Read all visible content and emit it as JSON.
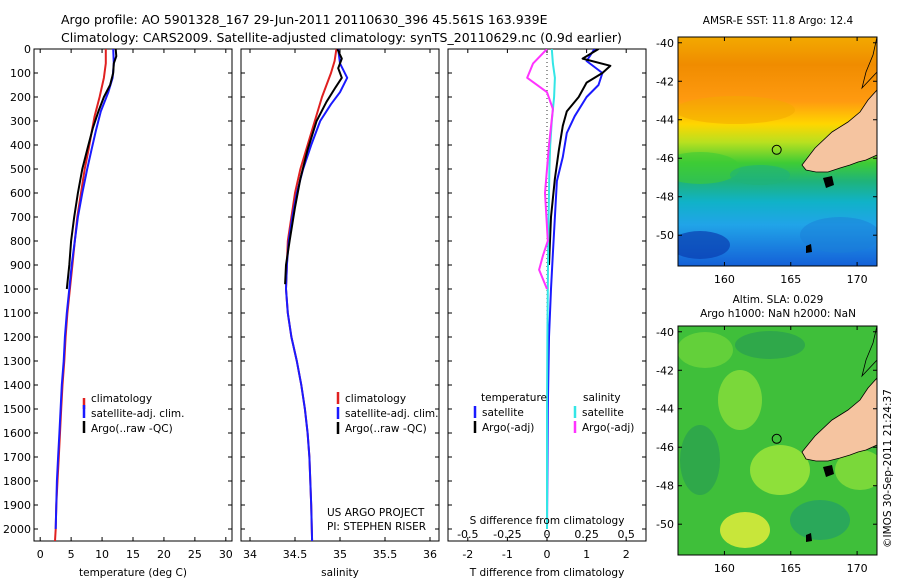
{
  "title": {
    "line1": "Argo profile: AO 5901328_167 29-Jun-2011 20110630_396 45.561S 163.939E",
    "line2": "Climatology: CARS2009. Satellite-adjusted climatology: synTS_20110629.nc (0.9d earlier)"
  },
  "footer_timestamp": "©IMOS 30-Sep-2011 21:24:37",
  "colors": {
    "climatology": "#e02020",
    "satellite": "#1a1aff",
    "argo": "#000000",
    "satellite_s": "#33e6e6",
    "argo_s": "#ff33ff"
  },
  "chart_data": [
    {
      "type": "line",
      "panel": "temperature",
      "xlabel": "temperature (deg C)",
      "ylabel": "",
      "xlim": [
        -1,
        31
      ],
      "ylim": [
        2050,
        0
      ],
      "xticks": [
        0,
        5,
        10,
        15,
        20,
        25,
        30
      ],
      "yticks": [
        0,
        100,
        200,
        300,
        400,
        500,
        600,
        700,
        800,
        900,
        1000,
        1100,
        1200,
        1300,
        1400,
        1500,
        1600,
        1700,
        1800,
        1900,
        2000
      ],
      "legend": [
        "climatology",
        "satellite-adj. clim.",
        "Argo(..raw -QC)"
      ],
      "series": [
        {
          "name": "climatology",
          "color_key": "climatology",
          "x": [
            10.6,
            10.6,
            10.3,
            9.6,
            8.8,
            8.3,
            7.8,
            7.2,
            6.6,
            6.0,
            5.6,
            5.2,
            4.8,
            4.4,
            4.1,
            3.9,
            3.6,
            3.4,
            3.2,
            3.0,
            2.8,
            2.6,
            2.5,
            2.4
          ],
          "y": [
            0,
            60,
            120,
            200,
            280,
            350,
            420,
            500,
            600,
            700,
            800,
            900,
            1000,
            1100,
            1200,
            1300,
            1400,
            1500,
            1600,
            1700,
            1800,
            1900,
            2000,
            2050
          ]
        },
        {
          "name": "satellite-adj. clim.",
          "color_key": "satellite",
          "x": [
            11.8,
            11.9,
            11.7,
            11.0,
            9.8,
            9.0,
            8.3,
            7.6,
            6.8,
            6.1,
            5.6,
            5.1,
            4.7,
            4.3,
            4.0,
            3.8,
            3.5,
            3.3,
            3.1,
            2.9,
            2.7,
            2.6,
            2.5
          ],
          "y": [
            0,
            60,
            120,
            180,
            260,
            340,
            420,
            500,
            600,
            700,
            800,
            900,
            1000,
            1100,
            1200,
            1300,
            1400,
            1500,
            1600,
            1700,
            1800,
            1900,
            2000
          ]
        },
        {
          "name": "Argo(..raw -QC)",
          "color_key": "argo",
          "x": [
            12.2,
            12.3,
            11.9,
            11.8,
            11.3,
            10.3,
            9.4,
            8.5,
            7.7,
            6.8,
            6.1,
            5.5,
            5.0,
            4.7,
            4.3
          ],
          "y": [
            0,
            30,
            60,
            100,
            150,
            200,
            260,
            330,
            410,
            500,
            600,
            700,
            800,
            900,
            1000
          ]
        }
      ]
    },
    {
      "type": "line",
      "panel": "salinity",
      "xlabel": "salinity",
      "ylabel": "",
      "xlim": [
        33.9,
        36.1
      ],
      "ylim": [
        2050,
        0
      ],
      "xticks": [
        34,
        34.5,
        35,
        35.5,
        36
      ],
      "legend": [
        "climatology",
        "satellite-adj. clim.",
        "Argo(..raw -QC)"
      ],
      "annotation": [
        "US ARGO PROJECT",
        "PI: STEPHEN RISER"
      ],
      "series": [
        {
          "name": "climatology",
          "color_key": "climatology",
          "x": [
            34.96,
            34.94,
            34.9,
            34.85,
            34.8,
            34.72,
            34.64,
            34.56,
            34.5,
            34.46,
            34.42,
            34.41,
            34.4,
            34.42,
            34.46,
            34.52,
            34.57,
            34.61,
            34.64,
            34.66,
            34.67,
            34.68,
            34.69
          ],
          "y": [
            0,
            50,
            100,
            150,
            200,
            300,
            400,
            500,
            600,
            700,
            800,
            900,
            1000,
            1100,
            1200,
            1300,
            1400,
            1500,
            1600,
            1700,
            1800,
            1900,
            2050
          ]
        },
        {
          "name": "satellite-adj. clim.",
          "color_key": "satellite",
          "x": [
            34.98,
            35.0,
            35.08,
            35.0,
            34.9,
            34.78,
            34.68,
            34.59,
            34.52,
            34.47,
            34.43,
            34.41,
            34.4,
            34.42,
            34.46,
            34.52,
            34.57,
            34.61,
            34.64,
            34.66,
            34.67,
            34.68,
            34.69
          ],
          "y": [
            0,
            60,
            120,
            180,
            230,
            300,
            400,
            500,
            600,
            700,
            800,
            900,
            1000,
            1100,
            1200,
            1300,
            1400,
            1500,
            1600,
            1700,
            1800,
            1900,
            2050
          ]
        },
        {
          "name": "Argo(..raw -QC)",
          "color_key": "argo",
          "x": [
            34.97,
            35.02,
            34.98,
            35.02,
            34.95,
            34.85,
            34.74,
            34.64,
            34.56,
            34.5,
            34.44,
            34.4,
            34.39
          ],
          "y": [
            0,
            40,
            80,
            120,
            160,
            220,
            300,
            420,
            540,
            660,
            800,
            900,
            980
          ]
        }
      ]
    },
    {
      "type": "line",
      "panel": "difference",
      "xlabel": "T difference from climatology",
      "xlabel2": "S difference from climatology",
      "ylabel": "",
      "xlim": [
        -2.5,
        2.5
      ],
      "ylim": [
        2050,
        0
      ],
      "xticks": [
        -2,
        -1,
        0,
        1,
        2
      ],
      "xtick_labels": [
        "-2",
        "-1",
        "0",
        "1",
        "2"
      ],
      "xticks2": [
        -0.5,
        -0.25,
        0,
        0.25,
        0.5
      ],
      "legend_headers": [
        "temperature",
        "salinity"
      ],
      "legend": [
        "satellite",
        "Argo(-adj)",
        "satellite",
        "Argo(-adj)"
      ],
      "series": [
        {
          "name": "satellite",
          "color_key": "satellite",
          "x": [
            1.2,
            1.0,
            1.4,
            1.3,
            1.0,
            0.7,
            0.5,
            0.4,
            0.25,
            0.2,
            0.15,
            0.1,
            0.05,
            0.02,
            0.0
          ],
          "y": [
            0,
            50,
            100,
            150,
            200,
            280,
            350,
            450,
            550,
            700,
            850,
            1000,
            1200,
            1500,
            2000
          ]
        },
        {
          "name": "Argo(-adj)",
          "color_key": "argo",
          "x": [
            1.3,
            0.9,
            1.6,
            1.4,
            1.0,
            0.8,
            0.5,
            0.4,
            0.3,
            0.2,
            0.1,
            0.05
          ],
          "y": [
            0,
            40,
            70,
            100,
            140,
            200,
            260,
            320,
            420,
            540,
            700,
            900
          ]
        },
        {
          "name": "satellite",
          "color_key": "satellite_s",
          "x": [
            0.12,
            0.15,
            0.2,
            0.18,
            0.12,
            0.08,
            0.06,
            0.05,
            0.04,
            0.03,
            0.02,
            0.01,
            0.0,
            0.0
          ],
          "y": [
            0,
            60,
            120,
            200,
            300,
            400,
            500,
            600,
            700,
            800,
            1000,
            1200,
            1500,
            2000
          ]
        },
        {
          "name": "Argo(-adj)",
          "color_key": "argo_s",
          "x": [
            0.0,
            -0.35,
            -0.5,
            0.0,
            0.15,
            0.05,
            -0.05,
            0.02,
            -0.1,
            -0.2,
            0.0
          ],
          "y": [
            0,
            60,
            120,
            180,
            250,
            400,
            600,
            800,
            860,
            920,
            1000
          ]
        }
      ]
    }
  ],
  "maps": {
    "sst": {
      "title": "AMSR-E SST: 11.8 Argo: 12.4",
      "xticks": [
        160,
        165,
        170
      ],
      "yticks": [
        -40,
        -42,
        -44,
        -46,
        -48,
        -50
      ],
      "xlim": [
        156.5,
        171.5
      ],
      "ylim": [
        -51.6,
        -39.7
      ],
      "argo_position": [
        163.939,
        -45.561
      ]
    },
    "sla": {
      "title_line1": "Altim. SLA: 0.029",
      "title_line2": "Argo h1000: NaN h2000: NaN",
      "xticks": [
        160,
        165,
        170
      ],
      "yticks": [
        -40,
        -42,
        -44,
        -46,
        -48,
        -50
      ],
      "xlim": [
        156.5,
        171.5
      ],
      "ylim": [
        -51.6,
        -39.7
      ],
      "argo_position": [
        163.939,
        -45.561
      ]
    }
  }
}
